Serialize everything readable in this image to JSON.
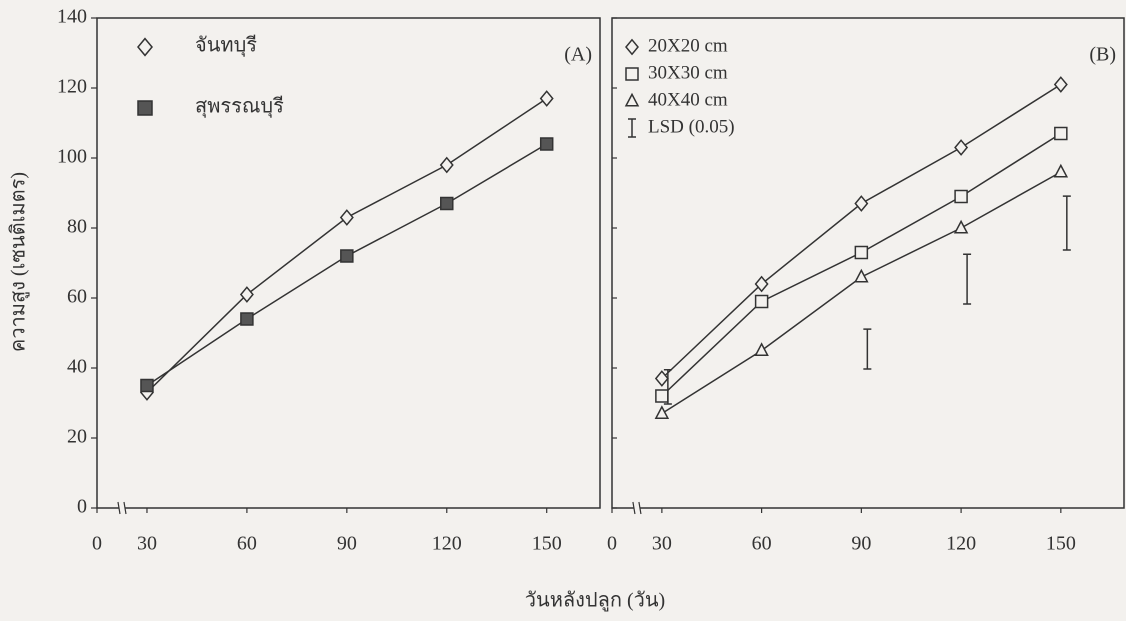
{
  "xlabel": "วันหลังปลูก (วัน)",
  "ylabel": "ความสูง (เซนติเมตร)",
  "chart_data": [
    {
      "type": "line",
      "label": "(A)",
      "x": [
        30,
        60,
        90,
        120,
        150
      ],
      "xlim": [
        0,
        166
      ],
      "xticks": [
        0,
        30,
        60,
        90,
        120,
        150
      ],
      "axis_break": true,
      "ylim": [
        0,
        140
      ],
      "yticks": [
        0,
        20,
        40,
        60,
        80,
        100,
        120,
        140
      ],
      "ytick_labels": true,
      "legend": "upper left",
      "series": [
        {
          "name": "จันทบุรี",
          "marker": "diamond",
          "color": "#333333",
          "fill": "none",
          "values": [
            33,
            61,
            83,
            98,
            117
          ]
        },
        {
          "name": "สุพรรณบุรี",
          "marker": "square",
          "color": "#333333",
          "fill": "#555555",
          "values": [
            35,
            54,
            72,
            87,
            104
          ]
        }
      ]
    },
    {
      "type": "line",
      "label": "(B)",
      "x": [
        30,
        60,
        90,
        120,
        150
      ],
      "xlim": [
        0,
        169
      ],
      "xticks": [
        0,
        30,
        60,
        90,
        120,
        150
      ],
      "axis_break": true,
      "ylim": [
        0,
        140
      ],
      "yticks": [
        0,
        20,
        40,
        60,
        80,
        100,
        120,
        140
      ],
      "ytick_labels": false,
      "legend": "upper left",
      "series": [
        {
          "name": "20X20 cm",
          "marker": "diamond",
          "color": "#333333",
          "fill": "none",
          "values": [
            37,
            64,
            87,
            103,
            121
          ]
        },
        {
          "name": "30X30 cm",
          "marker": "square",
          "color": "#333333",
          "fill": "none",
          "values": [
            32,
            59,
            73,
            89,
            107
          ]
        },
        {
          "name": "40X40 cm",
          "marker": "triangle",
          "color": "#333333",
          "fill": "none",
          "values": [
            27,
            45,
            66,
            80,
            96
          ]
        },
        {
          "name": "LSD (0.05)",
          "kind": "errorbar",
          "color": "#333333",
          "x": [
            30,
            90,
            120,
            150
          ],
          "values": [
            34.6,
            45.4,
            65.4,
            81.4
          ],
          "errors": [
            4.9,
            5.7,
            7.1,
            7.7
          ]
        }
      ]
    }
  ]
}
